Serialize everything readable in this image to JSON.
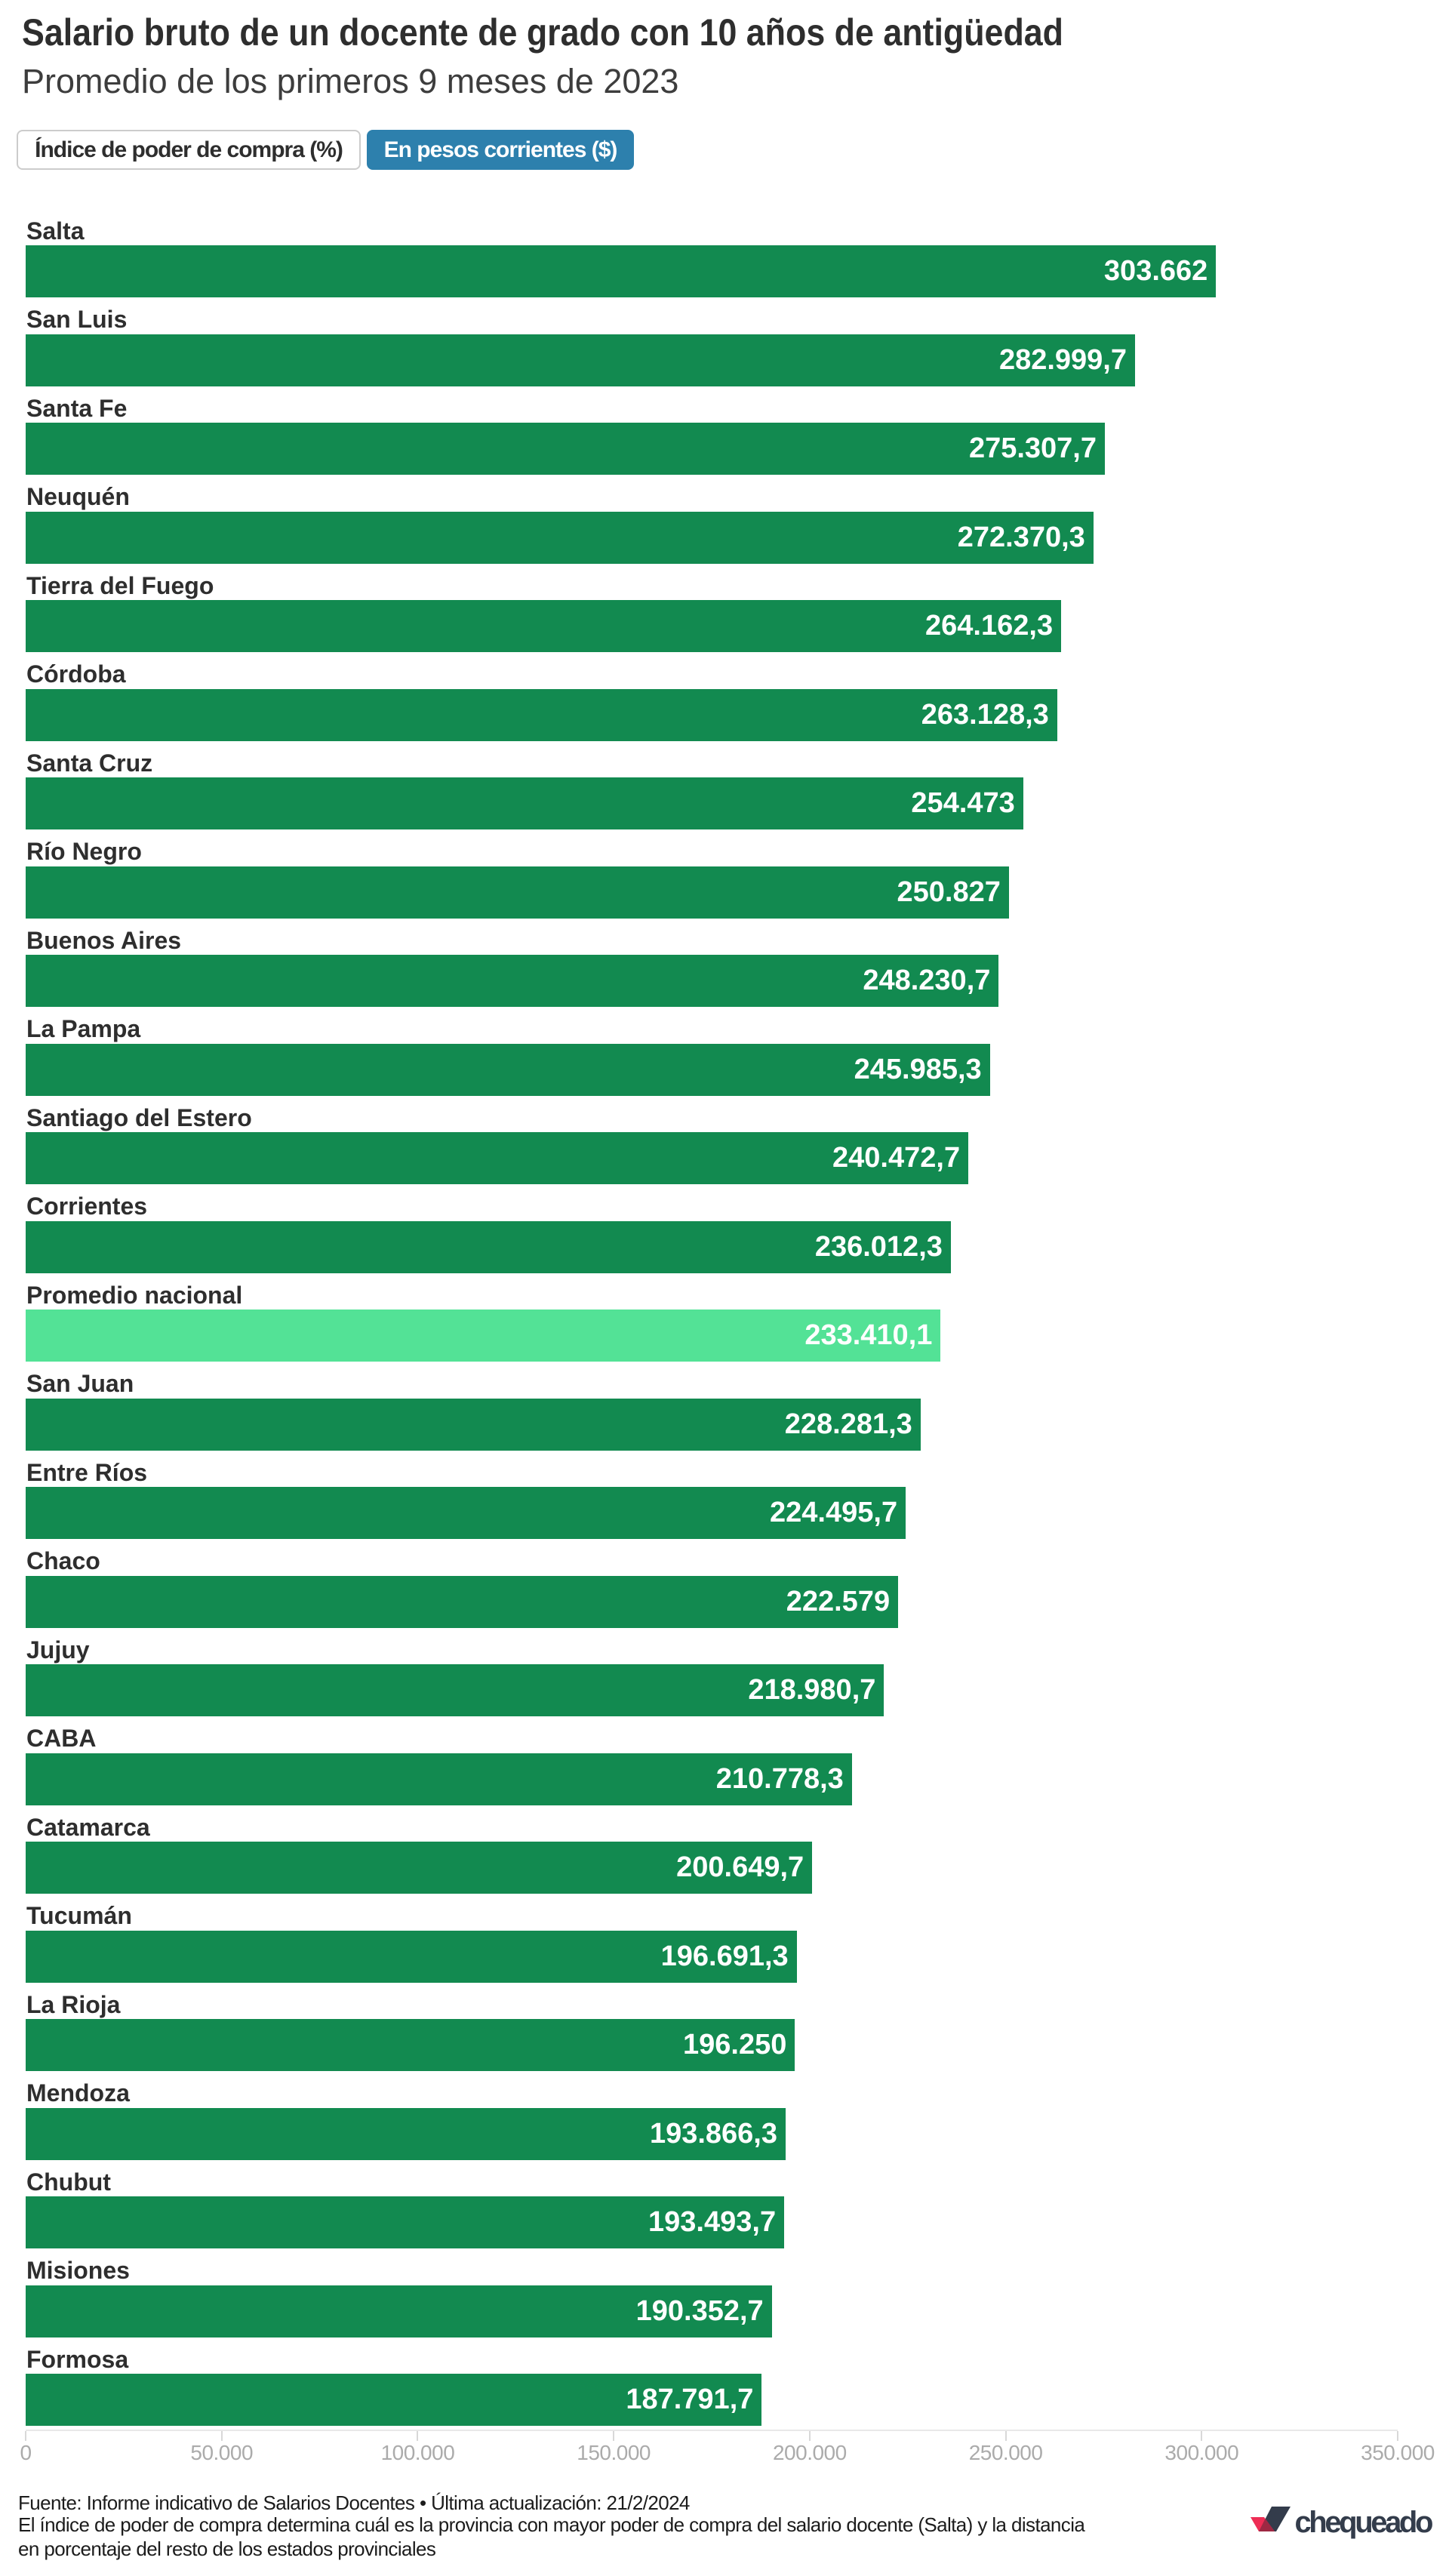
{
  "header": {
    "title": "Salario bruto de un docente de grado con 10 años de antigüedad",
    "subtitle": "Promedio de los primeros 9 meses de 2023"
  },
  "switcher": {
    "options": [
      {
        "label": "Índice de poder de compra (%)",
        "active": false
      },
      {
        "label": "En pesos corrientes ($)",
        "active": true
      }
    ]
  },
  "chart_data": {
    "type": "bar",
    "orientation": "horizontal",
    "title": "Salario bruto de un docente de grado con 10 años de antigüedad",
    "subtitle": "Promedio de los primeros 9 meses de 2023",
    "unit": "pesos corrientes ($)",
    "categories": [
      "Salta",
      "San Luis",
      "Santa Fe",
      "Neuquén",
      "Tierra del Fuego",
      "Córdoba",
      "Santa Cruz",
      "Río Negro",
      "Buenos Aires",
      "La Pampa",
      "Santiago del Estero",
      "Corrientes",
      "Promedio nacional",
      "San Juan",
      "Entre Ríos",
      "Chaco",
      "Jujuy",
      "CABA",
      "Catamarca",
      "Tucumán",
      "La Rioja",
      "Mendoza",
      "Chubut",
      "Misiones",
      "Formosa"
    ],
    "values": [
      303662,
      282999.7,
      275307.7,
      272370.3,
      264162.3,
      263128.3,
      254473,
      250827,
      248230.7,
      245985.3,
      240472.7,
      236012.3,
      233410.1,
      228281.3,
      224495.7,
      222579,
      218980.7,
      210778.3,
      200649.7,
      196691.3,
      196250,
      193866.3,
      193493.7,
      190352.7,
      187791.7
    ],
    "value_labels": [
      "303.662",
      "282.999,7",
      "275.307,7",
      "272.370,3",
      "264.162,3",
      "263.128,3",
      "254.473",
      "250.827",
      "248.230,7",
      "245.985,3",
      "240.472,7",
      "236.012,3",
      "233.410,1",
      "228.281,3",
      "224.495,7",
      "222.579",
      "218.980,7",
      "210.778,3",
      "200.649,7",
      "196.691,3",
      "196.250",
      "193.866,3",
      "193.493,7",
      "190.352,7",
      "187.791,7"
    ],
    "highlight_category": "Promedio nacional",
    "xlim": [
      0,
      350000
    ],
    "x_ticks": [
      0,
      50000,
      100000,
      150000,
      200000,
      250000,
      300000,
      350000
    ],
    "x_tick_labels": [
      "0",
      "50.000",
      "100.000",
      "150.000",
      "200.000",
      "250.000",
      "300.000",
      "350.000"
    ],
    "grid": false,
    "bar_color": "#128a50",
    "highlight_color": "#53e296"
  },
  "footer": {
    "source_line": "Fuente: Informe indicativo de Salarios Docentes • Última actualización: 21/2/2024",
    "description": "El índice de poder de compra determina cuál es la provincia con mayor poder de compra del salario docente (Salta) y la distancia en porcentaje del resto de los estados provinciales",
    "logo_text": "chequeado"
  }
}
